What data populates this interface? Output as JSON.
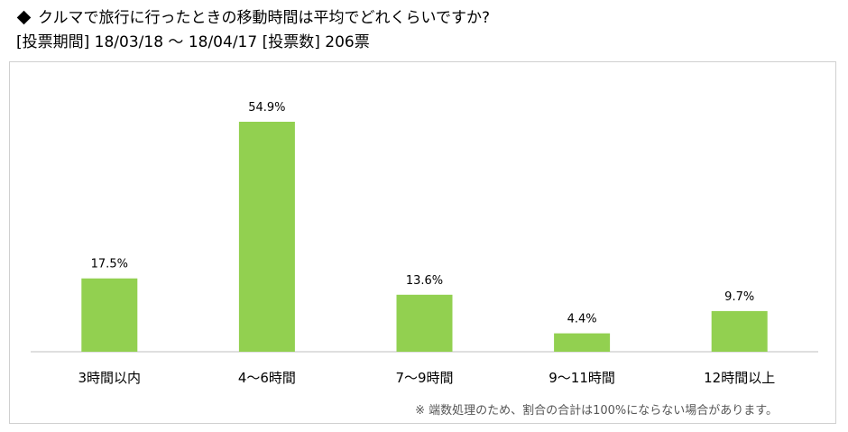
{
  "header": {
    "title": "クルマで旅行に行ったときの移動時間は平均でどれくらいですか?",
    "subtitle": "[投票期間] 18/03/18 〜 18/04/17 [投票数] 206票"
  },
  "footnote": "※ 端数処理のため、割合の合計は100%にならない場合があります。",
  "colors": {
    "bar": "#92d050",
    "axis": "#bfbfbf",
    "frame": "#d0d0d0"
  },
  "chart_data": {
    "type": "bar",
    "title": "クルマで旅行に行ったときの移動時間は平均でどれくらいですか?",
    "categories": [
      "3時間以内",
      "4〜6時間",
      "7〜9時間",
      "9〜11時間",
      "12時間以上"
    ],
    "values": [
      17.5,
      54.9,
      13.6,
      4.4,
      9.7
    ],
    "data_labels": [
      "17.5%",
      "54.9%",
      "13.6%",
      "4.4%",
      "9.7%"
    ],
    "unit": "%",
    "ylim": [
      0,
      60
    ],
    "grid": false,
    "legend": "none"
  }
}
